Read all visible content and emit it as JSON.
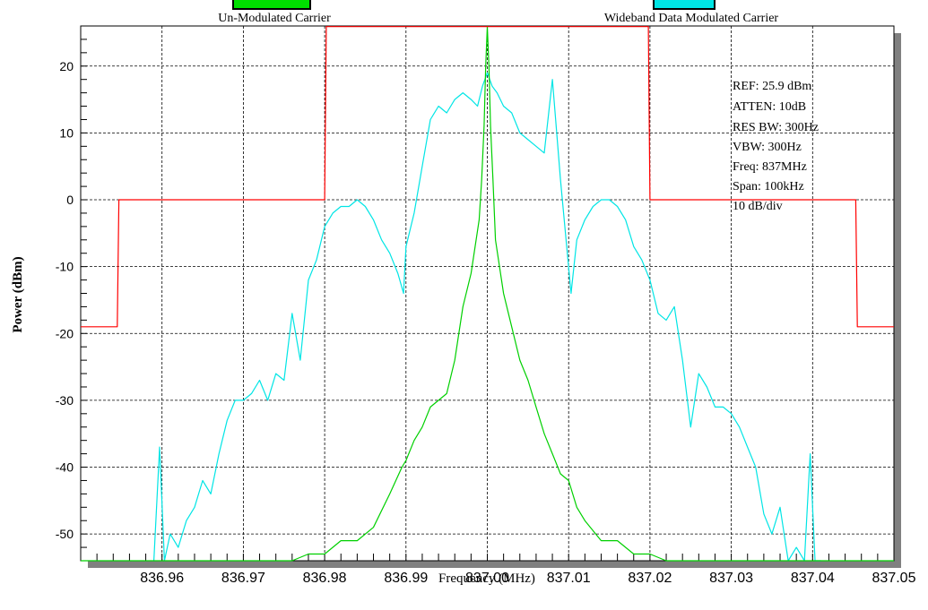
{
  "chart_data": {
    "type": "line",
    "xlabel": "Frequency (MHz)",
    "ylabel": "Power (dBm)",
    "xlim": [
      836.95,
      837.05
    ],
    "ylim": [
      -54,
      26
    ],
    "grid": true,
    "x_ticks": [
      "836.96",
      "836.97",
      "836.98",
      "836.99",
      "837.00",
      "837.01",
      "837.02",
      "837.03",
      "837.04",
      "837.05"
    ],
    "x_tick_values": [
      836.96,
      836.97,
      836.98,
      836.99,
      837.0,
      837.01,
      837.02,
      837.03,
      837.04,
      837.05
    ],
    "y_ticks": [
      "20",
      "10",
      "0",
      "-10",
      "-20",
      "-30",
      "-40",
      "-50"
    ],
    "y_tick_values": [
      20,
      10,
      0,
      -10,
      -20,
      -30,
      -40,
      -50
    ],
    "legend": {
      "placement": "top",
      "items": [
        {
          "label": "Un-Modulated Carrier",
          "color": "#00d000"
        },
        {
          "label": "Wideband Data Modulated Carrier",
          "color": "#00e5e5"
        }
      ]
    },
    "annotations": [
      "REF: 25.9 dBm",
      "ATTEN: 10dB",
      "RES BW: 300Hz",
      "VBW: 300Hz",
      "Freq: 837MHz",
      "Span: 100kHz",
      "10 dB/div"
    ],
    "series": [
      {
        "color": "#00e5e5",
        "x": [
          836.959,
          836.9597,
          836.9603,
          836.961,
          836.962,
          836.963,
          836.964,
          836.965,
          836.966,
          836.967,
          836.968,
          836.969,
          836.97,
          836.971,
          836.972,
          836.973,
          836.974,
          836.975,
          836.976,
          836.977,
          836.978,
          836.979,
          836.98,
          836.981,
          836.982,
          836.983,
          836.984,
          836.985,
          836.986,
          836.987,
          836.988,
          836.989,
          836.9897,
          836.99,
          836.991,
          836.992,
          836.993,
          836.994,
          836.995,
          836.996,
          836.997,
          836.998,
          836.9988,
          836.9994,
          837.0,
          837.0006,
          837.0012,
          837.002,
          837.003,
          837.004,
          837.005,
          837.006,
          837.007,
          837.008,
          837.009,
          837.0103,
          837.011,
          837.012,
          837.013,
          837.014,
          837.015,
          837.016,
          837.017,
          837.018,
          837.019,
          837.02,
          837.021,
          837.022,
          837.023,
          837.024,
          837.025,
          837.026,
          837.027,
          837.028,
          837.029,
          837.03,
          837.031,
          837.032,
          837.033,
          837.034,
          837.035,
          837.036,
          837.037,
          837.038,
          837.039,
          837.0397,
          837.0403,
          837.041
        ],
        "y": [
          -54,
          -37,
          -54,
          -50,
          -52,
          -48,
          -46,
          -42,
          -44,
          -38,
          -33,
          -30,
          -30,
          -29,
          -27,
          -30,
          -26,
          -27,
          -17,
          -24,
          -12,
          -9,
          -4,
          -2,
          -1,
          -1,
          0,
          -1,
          -3,
          -6,
          -8,
          -11,
          -14,
          -7,
          -2,
          5,
          12,
          14,
          13,
          15,
          16,
          15,
          14,
          17,
          19,
          17,
          16,
          14,
          13,
          10,
          9,
          8,
          7,
          18,
          3,
          -14,
          -6,
          -3,
          -1,
          0,
          0,
          -1,
          -3,
          -7,
          -9,
          -12,
          -17,
          -18,
          -16,
          -24,
          -34,
          -26,
          -28,
          -31,
          -31,
          -32,
          -34,
          -37,
          -40,
          -47,
          -50,
          -46,
          -54,
          -52,
          -54,
          -38,
          -54,
          -54
        ]
      },
      {
        "color": "#00d000",
        "x": [
          836.95,
          836.975,
          836.976,
          836.978,
          836.98,
          836.982,
          836.984,
          836.986,
          836.988,
          836.9895,
          836.99,
          836.991,
          836.992,
          836.993,
          836.994,
          836.995,
          836.996,
          836.997,
          836.998,
          836.999,
          836.9993,
          836.9996,
          836.9998,
          837.0,
          837.0002,
          837.0004,
          837.0007,
          837.001,
          837.002,
          837.003,
          837.004,
          837.005,
          837.006,
          837.007,
          837.008,
          837.009,
          837.01,
          837.011,
          837.012,
          837.014,
          837.016,
          837.018,
          837.02,
          837.022,
          837.025,
          837.05
        ],
        "y": [
          -54,
          -54,
          -54,
          -53,
          -53,
          -51,
          -51,
          -49,
          -44,
          -40,
          -39,
          -36,
          -34,
          -31,
          -30,
          -29,
          -24,
          -16,
          -11,
          -3,
          3,
          11,
          20,
          25.9,
          20,
          11,
          3,
          -6,
          -14,
          -19,
          -24,
          -27,
          -31,
          -35,
          -38,
          -41,
          -42,
          -46,
          -48,
          -51,
          -51,
          -53,
          -53,
          -54,
          -54,
          -54
        ]
      },
      {
        "color": "#ff0000",
        "x": [
          836.95,
          836.9545,
          836.9547,
          836.98,
          836.9802,
          837.0198,
          837.02,
          837.0453,
          837.0455,
          837.05
        ],
        "y": [
          -19,
          -19,
          0,
          0,
          25.9,
          25.9,
          0,
          0,
          -19,
          -19
        ]
      }
    ]
  }
}
